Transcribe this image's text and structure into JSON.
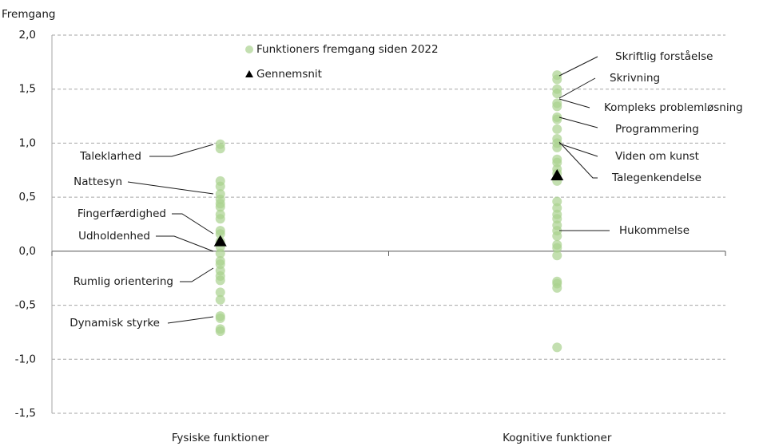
{
  "chart_data": {
    "type": "strip",
    "y_label": "Fremgang",
    "categories": [
      "Fysiske funktioner",
      "Kognitive funktioner"
    ],
    "series": [
      {
        "name": "Funktioners fremgang siden 2022",
        "color": "#a9d18e",
        "marker": "circle",
        "values": [
          [
            0.99,
            0.95,
            0.65,
            0.6,
            0.53,
            0.48,
            0.44,
            0.41,
            0.34,
            0.3,
            0.19,
            0.16,
            0.09,
            0.04,
            -0.02,
            -0.09,
            -0.12,
            -0.18,
            -0.23,
            -0.27,
            -0.38,
            -0.45,
            -0.6,
            -0.62,
            -0.72,
            -0.74
          ],
          [
            1.63,
            1.59,
            1.5,
            1.46,
            1.37,
            1.34,
            1.24,
            1.22,
            1.13,
            1.04,
            1.0,
            0.96,
            0.85,
            0.82,
            0.76,
            0.72,
            0.65,
            0.46,
            0.4,
            0.34,
            0.3,
            0.24,
            0.19,
            0.14,
            0.06,
            0.03,
            -0.04,
            -0.28,
            -0.3,
            -0.34,
            -0.89
          ]
        ]
      },
      {
        "name": "Gennemsnit",
        "color": "#000000",
        "marker": "triangle",
        "values": [
          0.09,
          0.7
        ]
      }
    ],
    "annotations": [
      {
        "text": "Taleklarhed",
        "category": 0
      },
      {
        "text": "Nattesyn",
        "category": 0
      },
      {
        "text": "Fingerfærdighed",
        "category": 0
      },
      {
        "text": "Udholdenhed",
        "category": 0
      },
      {
        "text": "Rumlig orientering",
        "category": 0
      },
      {
        "text": "Dynamisk styrke",
        "category": 0
      },
      {
        "text": "Skriftlig forståelse",
        "category": 1
      },
      {
        "text": "Skrivning",
        "category": 1
      },
      {
        "text": "Kompleks problemløsning",
        "category": 1
      },
      {
        "text": "Programmering",
        "category": 1
      },
      {
        "text": "Viden om kunst",
        "category": 1
      },
      {
        "text": "Talegenkendelse",
        "category": 1
      },
      {
        "text": "Hukommelse",
        "category": 1
      }
    ],
    "ylim": [
      -1.5,
      2.0
    ],
    "yticks": [
      {
        "value": -1.5,
        "label": "-1,5"
      },
      {
        "value": -1.0,
        "label": "-1,0"
      },
      {
        "value": -0.5,
        "label": "-0,5"
      },
      {
        "value": 0,
        "label": "0,0"
      },
      {
        "value": 0.5,
        "label": "0,5"
      },
      {
        "value": 1.0,
        "label": "1,0"
      },
      {
        "value": 1.5,
        "label": "1,5"
      },
      {
        "value": 2.0,
        "label": "2,0"
      }
    ],
    "grid": true,
    "legend": "top-center"
  }
}
